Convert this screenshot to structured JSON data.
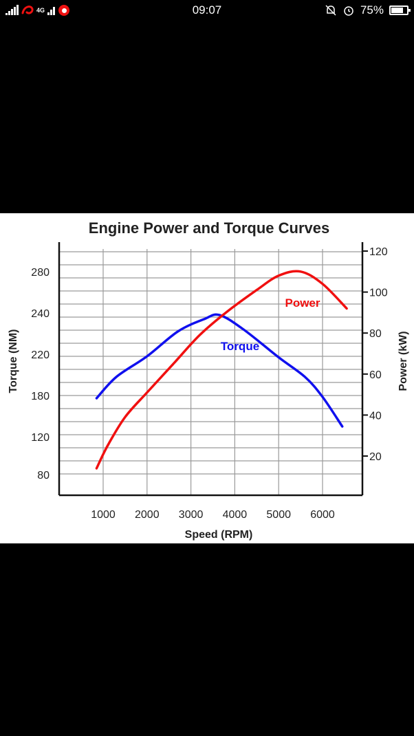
{
  "status_bar": {
    "time": "09:07",
    "battery": "75%",
    "battery_level": 0.75,
    "network": "4G",
    "icons": [
      "signal-icon",
      "airtel-icon",
      "network-4g-icon",
      "vodafone-icon",
      "mute-icon",
      "alarm-icon",
      "battery-icon"
    ]
  },
  "chart_data": {
    "type": "line",
    "title": "Engine Power and Torque Curves",
    "xlabel": "Speed (RPM)",
    "ylabel_left": "Torque (NM)",
    "ylabel_right": "Power (kW)",
    "x_ticks": [
      "1000",
      "2000",
      "3000",
      "4000",
      "5000",
      "6000"
    ],
    "y_left_ticks": [
      "80",
      "120",
      "180",
      "220",
      "240",
      "280"
    ],
    "y_right_ticks": [
      "20",
      "40",
      "60",
      "80",
      "100",
      "120"
    ],
    "grid": true,
    "series": [
      {
        "name": "Torque",
        "axis": "left",
        "color": "#1010ee",
        "points": [
          [
            850,
            176
          ],
          [
            1300,
            198
          ],
          [
            2000,
            218
          ],
          [
            2700,
            231
          ],
          [
            3300,
            237
          ],
          [
            3650,
            239
          ],
          [
            4200,
            232
          ],
          [
            5000,
            217
          ],
          [
            5600,
            198
          ],
          [
            6000,
            178
          ],
          [
            6450,
            135
          ]
        ]
      },
      {
        "name": "Power",
        "axis": "right",
        "color": "#f01010",
        "points": [
          [
            850,
            14
          ],
          [
            1100,
            25
          ],
          [
            1500,
            39
          ],
          [
            2000,
            51
          ],
          [
            2600,
            65
          ],
          [
            3200,
            79
          ],
          [
            3800,
            90
          ],
          [
            4500,
            101
          ],
          [
            5000,
            108
          ],
          [
            5500,
            110
          ],
          [
            6000,
            104
          ],
          [
            6550,
            92
          ]
        ]
      }
    ]
  }
}
